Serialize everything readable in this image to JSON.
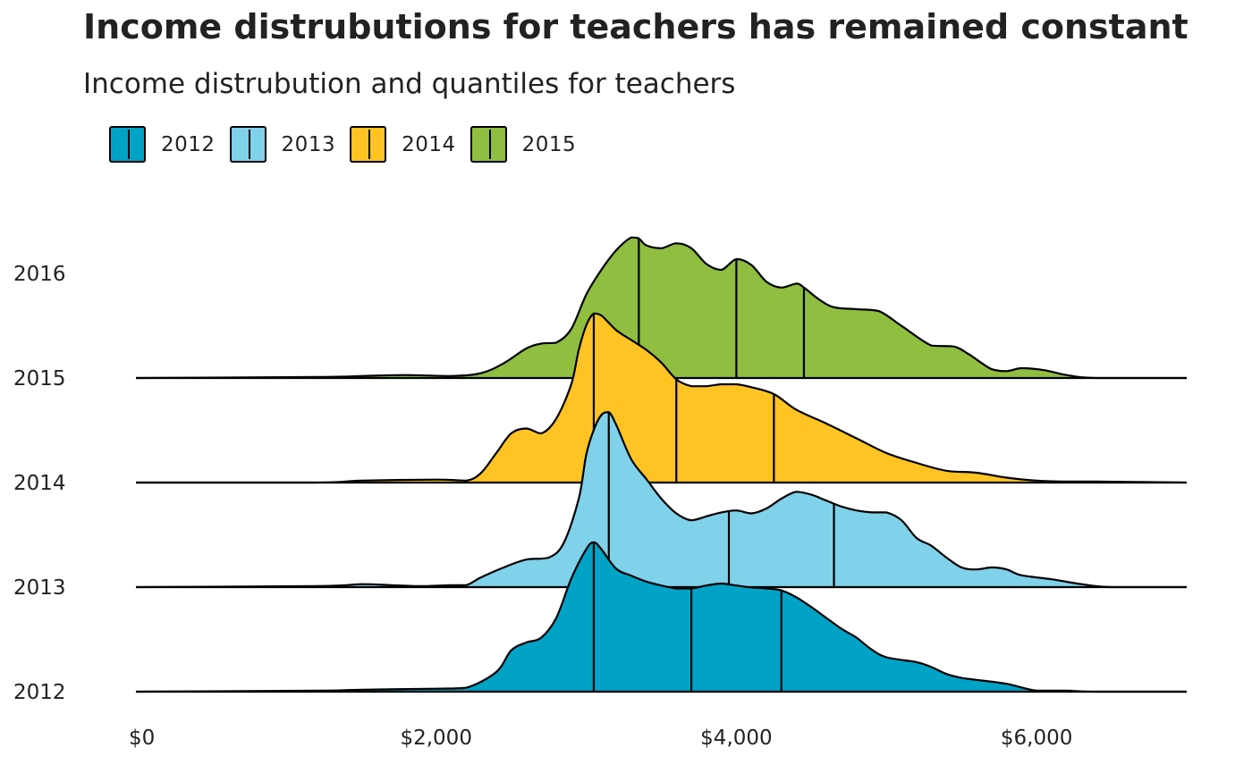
{
  "title": "Income distrubutions for teachers has remained constant",
  "subtitle": "Income distrubution and quantiles for teachers",
  "legend": [
    {
      "label": "2012",
      "color": "#00A3C6"
    },
    {
      "label": "2013",
      "color": "#80D1EA"
    },
    {
      "label": "2014",
      "color": "#FFC423"
    },
    {
      "label": "2015",
      "color": "#8FBE40"
    }
  ],
  "chart_data": {
    "type": "ridgeline",
    "y_categories": [
      "2012",
      "2013",
      "2014",
      "2015",
      "2016"
    ],
    "x_ticks": [
      {
        "value": 0,
        "label": "$0"
      },
      {
        "value": 2000,
        "label": "$2,000"
      },
      {
        "value": 4000,
        "label": "$4,000"
      },
      {
        "value": 6000,
        "label": "$6,000"
      }
    ],
    "xlim": [
      0,
      7000
    ],
    "grid": false,
    "legend_position": "top-left",
    "series": [
      {
        "name": "2012",
        "baseline": "2012",
        "color": "#00A3C6",
        "quantiles": [
          3050,
          3700,
          4300
        ],
        "density": [
          [
            0,
            0
          ],
          [
            1200,
            0.01
          ],
          [
            1500,
            0.02
          ],
          [
            2000,
            0.03
          ],
          [
            2200,
            0.04
          ],
          [
            2400,
            0.2
          ],
          [
            2500,
            0.42
          ],
          [
            2600,
            0.5
          ],
          [
            2700,
            0.55
          ],
          [
            2800,
            0.75
          ],
          [
            2900,
            1.15
          ],
          [
            3000,
            1.45
          ],
          [
            3050,
            1.52
          ],
          [
            3100,
            1.45
          ],
          [
            3200,
            1.25
          ],
          [
            3300,
            1.18
          ],
          [
            3400,
            1.12
          ],
          [
            3500,
            1.08
          ],
          [
            3600,
            1.05
          ],
          [
            3700,
            1.05
          ],
          [
            3800,
            1.08
          ],
          [
            3900,
            1.1
          ],
          [
            4000,
            1.08
          ],
          [
            4100,
            1.06
          ],
          [
            4200,
            1.05
          ],
          [
            4300,
            1.03
          ],
          [
            4400,
            0.96
          ],
          [
            4500,
            0.86
          ],
          [
            4600,
            0.75
          ],
          [
            4700,
            0.64
          ],
          [
            4800,
            0.55
          ],
          [
            4900,
            0.43
          ],
          [
            5000,
            0.35
          ],
          [
            5200,
            0.3
          ],
          [
            5300,
            0.25
          ],
          [
            5400,
            0.18
          ],
          [
            5500,
            0.14
          ],
          [
            5600,
            0.12
          ],
          [
            5800,
            0.08
          ],
          [
            6000,
            0.01
          ],
          [
            6200,
            0.01
          ],
          [
            6400,
            0
          ],
          [
            7000,
            0
          ]
        ]
      },
      {
        "name": "2013",
        "baseline": "2013",
        "color": "#80D1EA",
        "quantiles": [
          3150,
          3950,
          4650
        ],
        "density": [
          [
            0,
            0
          ],
          [
            1200,
            0.01
          ],
          [
            1500,
            0.03
          ],
          [
            1700,
            0.02
          ],
          [
            1900,
            0.01
          ],
          [
            2100,
            0.02
          ],
          [
            2200,
            0.02
          ],
          [
            2300,
            0.1
          ],
          [
            2450,
            0.2
          ],
          [
            2600,
            0.28
          ],
          [
            2750,
            0.3
          ],
          [
            2850,
            0.45
          ],
          [
            2950,
            0.9
          ],
          [
            3000,
            1.35
          ],
          [
            3050,
            1.6
          ],
          [
            3100,
            1.75
          ],
          [
            3150,
            1.78
          ],
          [
            3200,
            1.65
          ],
          [
            3300,
            1.3
          ],
          [
            3400,
            1.1
          ],
          [
            3500,
            0.9
          ],
          [
            3600,
            0.75
          ],
          [
            3700,
            0.68
          ],
          [
            3800,
            0.72
          ],
          [
            3900,
            0.76
          ],
          [
            4000,
            0.78
          ],
          [
            4100,
            0.75
          ],
          [
            4200,
            0.8
          ],
          [
            4300,
            0.9
          ],
          [
            4400,
            0.97
          ],
          [
            4500,
            0.94
          ],
          [
            4600,
            0.88
          ],
          [
            4700,
            0.82
          ],
          [
            4800,
            0.78
          ],
          [
            4900,
            0.76
          ],
          [
            5000,
            0.76
          ],
          [
            5100,
            0.68
          ],
          [
            5200,
            0.5
          ],
          [
            5300,
            0.42
          ],
          [
            5400,
            0.3
          ],
          [
            5500,
            0.2
          ],
          [
            5600,
            0.18
          ],
          [
            5700,
            0.2
          ],
          [
            5800,
            0.18
          ],
          [
            5900,
            0.12
          ],
          [
            6100,
            0.08
          ],
          [
            6300,
            0.03
          ],
          [
            6500,
            0
          ],
          [
            7000,
            0
          ]
        ]
      },
      {
        "name": "2014",
        "baseline": "2014",
        "color": "#FFC423",
        "quantiles": [
          3050,
          3600,
          4250
        ],
        "density": [
          [
            0,
            0
          ],
          [
            1200,
            0
          ],
          [
            1500,
            0.02
          ],
          [
            2000,
            0.03
          ],
          [
            2200,
            0.02
          ],
          [
            2300,
            0.1
          ],
          [
            2400,
            0.3
          ],
          [
            2500,
            0.5
          ],
          [
            2600,
            0.55
          ],
          [
            2700,
            0.5
          ],
          [
            2800,
            0.65
          ],
          [
            2900,
            1.0
          ],
          [
            2950,
            1.35
          ],
          [
            3000,
            1.6
          ],
          [
            3050,
            1.72
          ],
          [
            3100,
            1.7
          ],
          [
            3200,
            1.55
          ],
          [
            3300,
            1.45
          ],
          [
            3400,
            1.35
          ],
          [
            3500,
            1.22
          ],
          [
            3600,
            1.05
          ],
          [
            3700,
            0.98
          ],
          [
            3800,
            0.98
          ],
          [
            3900,
            1.0
          ],
          [
            4000,
            1.0
          ],
          [
            4100,
            0.97
          ],
          [
            4250,
            0.9
          ],
          [
            4400,
            0.74
          ],
          [
            4600,
            0.6
          ],
          [
            4800,
            0.45
          ],
          [
            5000,
            0.3
          ],
          [
            5200,
            0.2
          ],
          [
            5400,
            0.12
          ],
          [
            5600,
            0.1
          ],
          [
            5800,
            0.05
          ],
          [
            6000,
            0.02
          ],
          [
            6200,
            0.01
          ],
          [
            6400,
            0.01
          ],
          [
            7000,
            0
          ]
        ]
      },
      {
        "name": "2015",
        "baseline": "2015",
        "color": "#8FBE40",
        "quantiles": [
          3350,
          4000,
          4450
        ],
        "density": [
          [
            0,
            0
          ],
          [
            1200,
            0.01
          ],
          [
            1500,
            0.02
          ],
          [
            1800,
            0.03
          ],
          [
            2100,
            0.02
          ],
          [
            2300,
            0.05
          ],
          [
            2450,
            0.15
          ],
          [
            2600,
            0.3
          ],
          [
            2700,
            0.35
          ],
          [
            2800,
            0.36
          ],
          [
            2900,
            0.5
          ],
          [
            3000,
            0.85
          ],
          [
            3100,
            1.1
          ],
          [
            3200,
            1.3
          ],
          [
            3300,
            1.43
          ],
          [
            3350,
            1.42
          ],
          [
            3400,
            1.35
          ],
          [
            3500,
            1.32
          ],
          [
            3600,
            1.37
          ],
          [
            3700,
            1.32
          ],
          [
            3800,
            1.16
          ],
          [
            3900,
            1.1
          ],
          [
            4000,
            1.21
          ],
          [
            4100,
            1.15
          ],
          [
            4200,
            0.98
          ],
          [
            4300,
            0.92
          ],
          [
            4400,
            0.96
          ],
          [
            4450,
            0.92
          ],
          [
            4550,
            0.8
          ],
          [
            4650,
            0.72
          ],
          [
            4800,
            0.7
          ],
          [
            4950,
            0.68
          ],
          [
            5100,
            0.53
          ],
          [
            5300,
            0.33
          ],
          [
            5450,
            0.32
          ],
          [
            5550,
            0.24
          ],
          [
            5700,
            0.09
          ],
          [
            5800,
            0.07
          ],
          [
            5900,
            0.1
          ],
          [
            6050,
            0.08
          ],
          [
            6200,
            0.03
          ],
          [
            6400,
            0
          ],
          [
            7000,
            0
          ]
        ]
      }
    ]
  }
}
